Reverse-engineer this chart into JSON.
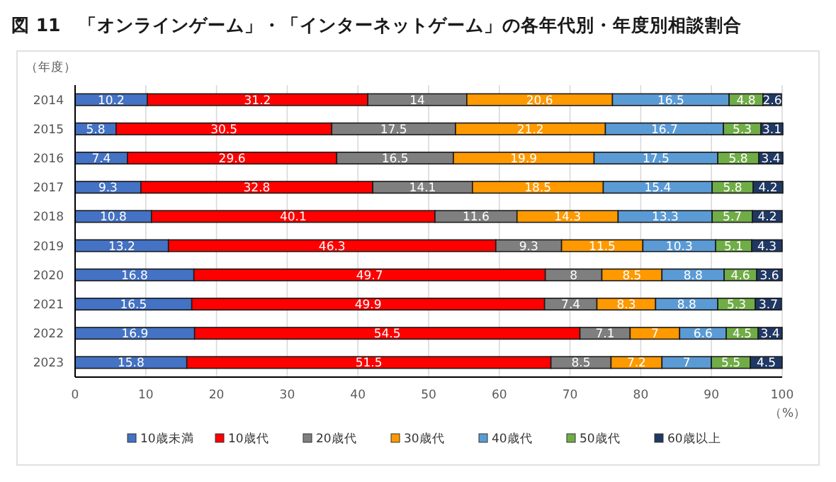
{
  "chart_data": {
    "type": "bar",
    "orientation": "horizontal",
    "stacked": true,
    "title": "図 11　「オンラインゲーム」・「インターネットゲーム」の各年代別・年度別相談割合",
    "ylabel": "（年度）",
    "xlabel": "（%）",
    "categories": [
      "2014",
      "2015",
      "2016",
      "2017",
      "2018",
      "2019",
      "2020",
      "2021",
      "2022",
      "2023"
    ],
    "series": [
      {
        "name": "10歳未満",
        "color": "#4472c4",
        "values": [
          10.2,
          5.8,
          7.4,
          9.3,
          10.8,
          13.2,
          16.8,
          16.5,
          16.9,
          15.8
        ]
      },
      {
        "name": "10歳代",
        "color": "#ff0000",
        "values": [
          31.2,
          30.5,
          29.6,
          32.8,
          40.1,
          46.3,
          49.7,
          49.9,
          54.5,
          51.5
        ]
      },
      {
        "name": "20歳代",
        "color": "#7f7f7f",
        "values": [
          14,
          17.5,
          16.5,
          14.1,
          11.6,
          9.3,
          8,
          7.4,
          7.1,
          8.5
        ]
      },
      {
        "name": "30歳代",
        "color": "#ff9900",
        "values": [
          20.6,
          21.2,
          19.9,
          18.5,
          14.3,
          11.5,
          8.5,
          8.3,
          7,
          7.2
        ]
      },
      {
        "name": "40歳代",
        "color": "#5b9bd5",
        "values": [
          16.5,
          16.7,
          17.5,
          15.4,
          13.3,
          10.3,
          8.8,
          8.8,
          6.6,
          7
        ]
      },
      {
        "name": "50歳代",
        "color": "#70ad47",
        "values": [
          4.8,
          5.3,
          5.8,
          5.8,
          5.7,
          5.1,
          4.6,
          5.3,
          4.5,
          5.5
        ]
      },
      {
        "name": "60歳以上",
        "color": "#1f3864",
        "values": [
          2.6,
          3.1,
          3.4,
          4.2,
          4.2,
          4.3,
          3.6,
          3.7,
          3.4,
          4.5
        ]
      }
    ],
    "xlim": [
      0,
      100
    ],
    "xticks": [
      0,
      10,
      20,
      30,
      40,
      50,
      60,
      70,
      80,
      90,
      100
    ],
    "grid": "x",
    "legend": "bottom",
    "data_labels": true
  }
}
